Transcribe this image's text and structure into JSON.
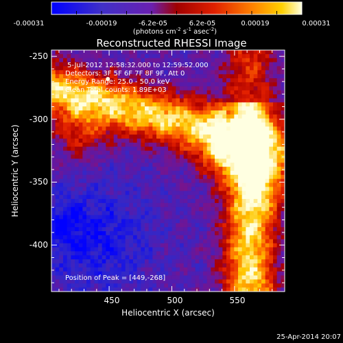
{
  "colorbar": {
    "tick_labels": [
      "-0.00031",
      "-0.00019",
      "-6.2e-05",
      "6.2e-05",
      "0.00019",
      "0.00031"
    ],
    "unit_label_main": "(photons cm",
    "unit_label_exp1": "-2",
    "unit_label_mid": " s",
    "unit_label_exp2": "-1",
    "unit_label_tail": " asec",
    "unit_label_exp3": "-2",
    "unit_label_close": ")"
  },
  "annotations": {
    "time_range": "5-Jul-2012 12:58:32.000 to 12:59:52.000",
    "detectors": "Detectors: 3F 5F 6F 7F 8F 9F, Att 0",
    "energy_range": "Energy Range: 25.0 - 50.0 keV",
    "clean_counts": "Clean    Total counts: 1.89E+03",
    "peak_position": "Position of Peak = [449,-268]"
  },
  "footer": {
    "timestamp": "25-Apr-2014 20:07"
  },
  "chart_data": {
    "type": "heatmap",
    "title": "Reconstructed RHESSI Image",
    "xlabel": "Heliocentric X (arcsec)",
    "ylabel": "Heliocentric Y (arcsec)",
    "xlim": [
      404,
      590
    ],
    "ylim": [
      -437,
      -245
    ],
    "x_ticks": [
      450,
      500,
      550
    ],
    "y_ticks": [
      -250,
      -300,
      -350,
      -400
    ],
    "colorscale_range": [
      -0.00031,
      0.00031
    ],
    "peak_position": [
      449,
      -268
    ],
    "description_regions": [
      {
        "region": "upper-left band",
        "level": "high"
      },
      {
        "region": "right band",
        "level": "high"
      },
      {
        "region": "center",
        "level": "low"
      },
      {
        "region": "lower-left",
        "level": "negative"
      }
    ]
  }
}
